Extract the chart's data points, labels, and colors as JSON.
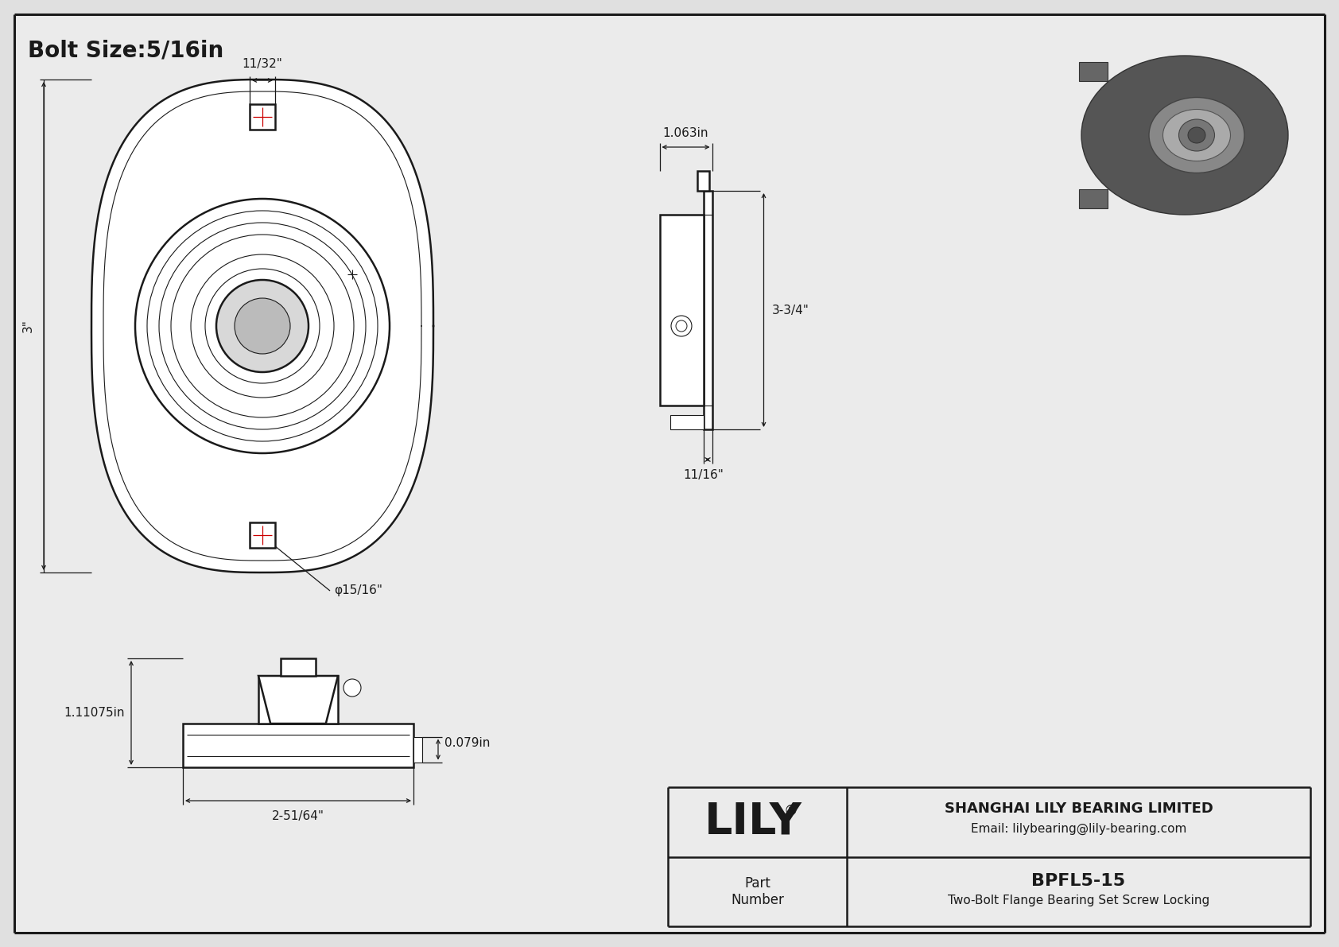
{
  "bg_color": "#e0e0e0",
  "inner_bg": "#ebebeb",
  "line_color": "#1a1a1a",
  "dim_color": "#1a1a1a",
  "red_color": "#cc0000",
  "title_text": "Bolt Size:5/16in",
  "title_fontsize": 20,
  "dim_fontsize": 11,
  "company_name": "SHANGHAI LILY BEARING LIMITED",
  "company_email": "Email: lilybearing@lily-bearing.com",
  "part_label": "Part\nNumber",
  "part_number": "BPFL5-15",
  "part_desc": "Two-Bolt Flange Bearing Set Screw Locking",
  "lily_text": "LILY",
  "dim_11_32": "11/32\"",
  "dim_3": "3\"",
  "dim_15_16": "φ15/16\"",
  "dim_1_063": "1.063in",
  "dim_3_3_4": "3-3/4\"",
  "dim_11_16": "11/16\"",
  "dim_0_079": "0.079in",
  "dim_1_11075": "1.11075in",
  "dim_2_51_64": "2-51/64\""
}
